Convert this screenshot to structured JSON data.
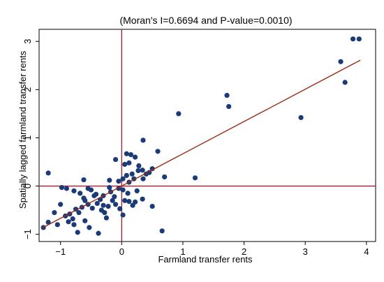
{
  "chart_data": {
    "type": "scatter",
    "title": "(Moran's I=0.6694 and P-value=0.0010)",
    "xlabel": "Farmland transfer rents",
    "ylabel": "Spatially lagged farmland transfer rents",
    "xlim": [
      -1.35,
      4.15
    ],
    "ylim": [
      -1.15,
      3.25
    ],
    "xticks": [
      -1,
      0,
      1,
      2,
      3,
      4
    ],
    "yticks": [
      -1,
      0,
      1,
      2,
      3
    ],
    "x_tick_labels": [
      "−1",
      "0",
      "1",
      "2",
      "3",
      "4"
    ],
    "y_tick_labels": [
      "−1",
      "0",
      "1",
      "2",
      "3"
    ],
    "grid": false,
    "colors": {
      "points": "#1a3a78",
      "fit_line": "#9a2a12",
      "reference_lines": "#a11a2e",
      "frame": "#000000"
    },
    "reference_lines": {
      "x": 0,
      "y": 0
    },
    "fit_line": {
      "x": [
        -1.3,
        3.9
      ],
      "y": [
        -0.87,
        2.61
      ]
    },
    "points": [
      [
        3.78,
        3.05
      ],
      [
        3.88,
        3.05
      ],
      [
        3.58,
        2.58
      ],
      [
        3.65,
        2.15
      ],
      [
        2.93,
        1.42
      ],
      [
        1.72,
        1.88
      ],
      [
        1.75,
        1.65
      ],
      [
        0.93,
        1.5
      ],
      [
        1.2,
        0.17
      ],
      [
        0.59,
        0.72
      ],
      [
        0.7,
        0.19
      ],
      [
        0.35,
        0.95
      ],
      [
        0.08,
        0.67
      ],
      [
        0.15,
        0.65
      ],
      [
        0.22,
        0.6
      ],
      [
        -0.1,
        0.55
      ],
      [
        0.05,
        0.45
      ],
      [
        0.12,
        0.48
      ],
      [
        0.28,
        0.42
      ],
      [
        0.34,
        0.33
      ],
      [
        0.45,
        0.28
      ],
      [
        0.5,
        0.36
      ],
      [
        0.27,
        0.32
      ],
      [
        0.17,
        0.25
      ],
      [
        0.08,
        0.22
      ],
      [
        0.02,
        0.15
      ],
      [
        0.2,
        0.15
      ],
      [
        0.35,
        0.15
      ],
      [
        0.4,
        0.25
      ],
      [
        -0.2,
        0.12
      ],
      [
        -0.05,
        0.1
      ],
      [
        0.12,
        0.08
      ],
      [
        -1.2,
        0.27
      ],
      [
        -0.98,
        -0.03
      ],
      [
        -0.78,
        -0.1
      ],
      [
        -0.68,
        -0.15
      ],
      [
        -0.62,
        0.13
      ],
      [
        -0.5,
        -0.08
      ],
      [
        -0.42,
        -0.17
      ],
      [
        -0.3,
        -0.2
      ],
      [
        -0.2,
        -0.03
      ],
      [
        -0.18,
        -0.12
      ],
      [
        -0.05,
        -0.05
      ],
      [
        0.02,
        -0.08
      ],
      [
        0.1,
        -0.15
      ],
      [
        0.25,
        -0.1
      ],
      [
        0.34,
        -0.27
      ],
      [
        0.5,
        -0.42
      ],
      [
        -1.0,
        -0.38
      ],
      [
        -0.85,
        -0.58
      ],
      [
        -0.75,
        -0.48
      ],
      [
        -0.7,
        -0.55
      ],
      [
        -0.65,
        -0.44
      ],
      [
        -0.55,
        -0.38
      ],
      [
        -0.48,
        -0.46
      ],
      [
        -0.4,
        -0.36
      ],
      [
        -0.35,
        -0.28
      ],
      [
        -0.3,
        -0.4
      ],
      [
        -0.22,
        -0.42
      ],
      [
        -0.15,
        -0.3
      ],
      [
        -0.1,
        -0.38
      ],
      [
        -0.03,
        -0.47
      ],
      [
        0.05,
        -0.3
      ],
      [
        0.12,
        -0.32
      ],
      [
        0.18,
        -0.4
      ],
      [
        0.22,
        -0.33
      ],
      [
        -0.9,
        -0.05
      ],
      [
        -0.92,
        -0.62
      ],
      [
        -0.87,
        -0.74
      ],
      [
        -0.8,
        -0.68
      ],
      [
        -1.1,
        -0.55
      ],
      [
        -1.2,
        -0.75
      ],
      [
        -1.28,
        -0.86
      ],
      [
        -1.05,
        -0.8
      ],
      [
        -0.78,
        -0.8
      ],
      [
        -0.72,
        -0.96
      ],
      [
        -0.6,
        -0.72
      ],
      [
        -0.53,
        -0.86
      ],
      [
        -0.38,
        -0.98
      ],
      [
        -0.25,
        -0.66
      ],
      [
        0.02,
        -0.6
      ],
      [
        0.66,
        -0.93
      ],
      [
        -0.6,
        -0.3
      ],
      [
        -0.45,
        -0.2
      ],
      [
        -0.12,
        -0.22
      ],
      [
        -0.28,
        -0.55
      ],
      [
        -0.55,
        -0.05
      ],
      [
        -0.62,
        -0.25
      ],
      [
        -0.33,
        -0.5
      ]
    ]
  }
}
